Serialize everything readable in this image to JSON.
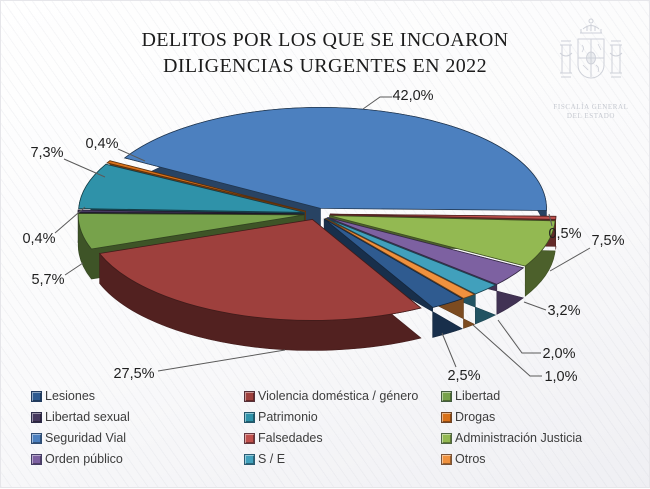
{
  "title": {
    "line1": "DELITOS POR LOS QUE SE INCOARON",
    "line2": "DILIGENCIAS URGENTES EN 2022"
  },
  "watermark": {
    "line1": "FISCALÍA GENERAL",
    "line2": "DEL ESTADO"
  },
  "chart_data": {
    "type": "pie",
    "title": "DELITOS POR LOS QUE SE INCOARON DILIGENCIAS URGENTES EN 2022",
    "unit": "percent",
    "effect": "3d-exploded",
    "direction": "clockwise",
    "start_angle_deg": 142.3,
    "legend_position": "bottom",
    "slices": [
      {
        "label": "Lesiones",
        "value": 2.5,
        "display": "2,5%",
        "color": "#2F5B90"
      },
      {
        "label": "Violencia doméstica / género",
        "value": 27.5,
        "display": "27,5%",
        "color": "#9E403D"
      },
      {
        "label": "Libertad",
        "value": 5.7,
        "display": "5,7%",
        "color": "#77A24B"
      },
      {
        "label": "Libertad sexual",
        "value": 0.4,
        "display": "0,4%",
        "color": "#46395F"
      },
      {
        "label": "Patrimonio",
        "value": 7.3,
        "display": "7,3%",
        "color": "#2F92A9"
      },
      {
        "label": "Drogas",
        "value": 0.4,
        "display": "0,4%",
        "color": "#D9711A"
      },
      {
        "label": "Seguridad Vial",
        "value": 42.0,
        "display": "42,0%",
        "color": "#4C80BF"
      },
      {
        "label": "Falsedades",
        "value": 0.5,
        "display": "0,5%",
        "color": "#C0504D"
      },
      {
        "label": "Administración Justicia",
        "value": 7.5,
        "display": "7,5%",
        "color": "#93B952"
      },
      {
        "label": "Orden público",
        "value": 3.2,
        "display": "3,2%",
        "color": "#7D61A1"
      },
      {
        "label": "S / E",
        "value": 2.0,
        "display": "2,0%",
        "color": "#41A0BC"
      },
      {
        "label": "Otros",
        "value": 1.0,
        "display": "1,0%",
        "color": "#EF913E"
      }
    ]
  }
}
